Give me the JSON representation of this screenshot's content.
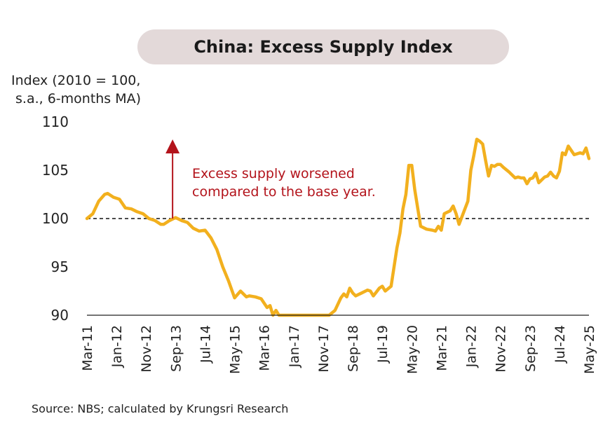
{
  "chart_data": {
    "type": "line",
    "title": "China: Excess Supply Index",
    "ylabel_line1": "Index (2010 = 100,",
    "ylabel_line2": "s.a., 6-months MA)",
    "ylim": [
      90,
      110
    ],
    "yticks": [
      90,
      95,
      100,
      105,
      110
    ],
    "xlim": [
      "2011-03",
      "2025-05"
    ],
    "xtick_labels": [
      "Mar-11",
      "Jan-12",
      "Nov-12",
      "Sep-13",
      "Jul-14",
      "May-15",
      "Mar-16",
      "Jan-17",
      "Nov-17",
      "Sep-18",
      "Jul-19",
      "May-20",
      "Mar-21",
      "Jan-22",
      "Nov-22",
      "Sep-23",
      "Jul-24",
      "May-25"
    ],
    "xtick_dates": [
      "2011-03",
      "2012-01",
      "2012-11",
      "2013-09",
      "2014-07",
      "2015-05",
      "2016-03",
      "2017-01",
      "2017-11",
      "2018-09",
      "2019-07",
      "2020-05",
      "2021-03",
      "2022-01",
      "2022-11",
      "2023-09",
      "2024-07",
      "2025-05"
    ],
    "reference_line": 100,
    "grid": false,
    "legend": "none",
    "series_color": "#f2b01e",
    "annotation": {
      "line1": "Excess supply worsened",
      "line2": "compared to the base year.",
      "color": "#b3131b",
      "arrow_date": "2013-08",
      "arrow_from": 100,
      "arrow_to": 107.9
    },
    "source": "Source: NBS; calculated by Krungsri Research",
    "series": [
      {
        "x": [
          "2011-03",
          "2011-05",
          "2011-07",
          "2011-09",
          "2011-10",
          "2011-12",
          "2012-02",
          "2012-04",
          "2012-06",
          "2012-08",
          "2012-10",
          "2012-12",
          "2013-02",
          "2013-04",
          "2013-05",
          "2013-07",
          "2013-09",
          "2013-11",
          "2014-01",
          "2014-03",
          "2014-05",
          "2014-07",
          "2014-09",
          "2014-11",
          "2015-01",
          "2015-03",
          "2015-05",
          "2015-07",
          "2015-08",
          "2015-09",
          "2015-10",
          "2015-12",
          "2016-02",
          "2016-04",
          "2016-05",
          "2016-06",
          "2016-07",
          "2016-08",
          "2016-09",
          "2016-10",
          "2016-11",
          "2017-01",
          "2017-03",
          "2017-05",
          "2017-07",
          "2017-09",
          "2017-11",
          "2018-01",
          "2018-03",
          "2018-05",
          "2018-06",
          "2018-07",
          "2018-08",
          "2018-09",
          "2018-10",
          "2018-12",
          "2019-02",
          "2019-03",
          "2019-04",
          "2019-05",
          "2019-06",
          "2019-07",
          "2019-08",
          "2019-10",
          "2019-12",
          "2020-01",
          "2020-02",
          "2020-03",
          "2020-04",
          "2020-05",
          "2020-06",
          "2020-08",
          "2020-10",
          "2020-12",
          "2021-01",
          "2021-02",
          "2021-03",
          "2021-04",
          "2021-06",
          "2021-07",
          "2021-08",
          "2021-09",
          "2021-10",
          "2021-11",
          "2021-12",
          "2022-01",
          "2022-02",
          "2022-03",
          "2022-04",
          "2022-05",
          "2022-06",
          "2022-07",
          "2022-08",
          "2022-09",
          "2022-10",
          "2022-11",
          "2022-12",
          "2023-02",
          "2023-04",
          "2023-05",
          "2023-06",
          "2023-07",
          "2023-08",
          "2023-09",
          "2023-10",
          "2023-11",
          "2023-12",
          "2024-02",
          "2024-03",
          "2024-04",
          "2024-05",
          "2024-06",
          "2024-07",
          "2024-08",
          "2024-09",
          "2024-10",
          "2024-12",
          "2025-02",
          "2025-03",
          "2025-04",
          "2025-05"
        ],
        "y": [
          100.0,
          100.5,
          101.8,
          102.5,
          102.6,
          102.2,
          102.0,
          101.1,
          101.0,
          100.7,
          100.5,
          100.0,
          99.8,
          99.4,
          99.4,
          99.8,
          100.1,
          99.8,
          99.6,
          99.0,
          98.7,
          98.8,
          98.0,
          96.8,
          95.0,
          93.5,
          91.8,
          92.5,
          92.2,
          91.9,
          92.0,
          91.9,
          91.7,
          90.8,
          91.0,
          90.0,
          90.5,
          89.9,
          90.0,
          90.0,
          89.8,
          89.5,
          89.5,
          89.3,
          89.3,
          89.6,
          89.8,
          90.0,
          90.5,
          91.8,
          92.2,
          91.9,
          92.8,
          92.3,
          92.0,
          92.3,
          92.6,
          92.5,
          92.0,
          92.4,
          92.8,
          93.0,
          92.5,
          93.0,
          97.0,
          98.5,
          101.0,
          102.5,
          105.5,
          105.5,
          103.0,
          99.2,
          98.9,
          98.8,
          98.7,
          99.2,
          98.8,
          100.5,
          100.8,
          101.3,
          100.5,
          99.4,
          100.2,
          101.0,
          101.8,
          105.0,
          106.5,
          108.2,
          108.0,
          107.7,
          106.0,
          104.4,
          105.5,
          105.4,
          105.6,
          105.6,
          105.3,
          104.8,
          104.2,
          104.3,
          104.2,
          104.2,
          103.6,
          104.1,
          104.2,
          104.7,
          103.7,
          104.3,
          104.4,
          104.8,
          104.4,
          104.2,
          104.9,
          106.8,
          106.6,
          107.5,
          106.6,
          106.8,
          106.7,
          107.3,
          106.2
        ]
      }
    ]
  }
}
